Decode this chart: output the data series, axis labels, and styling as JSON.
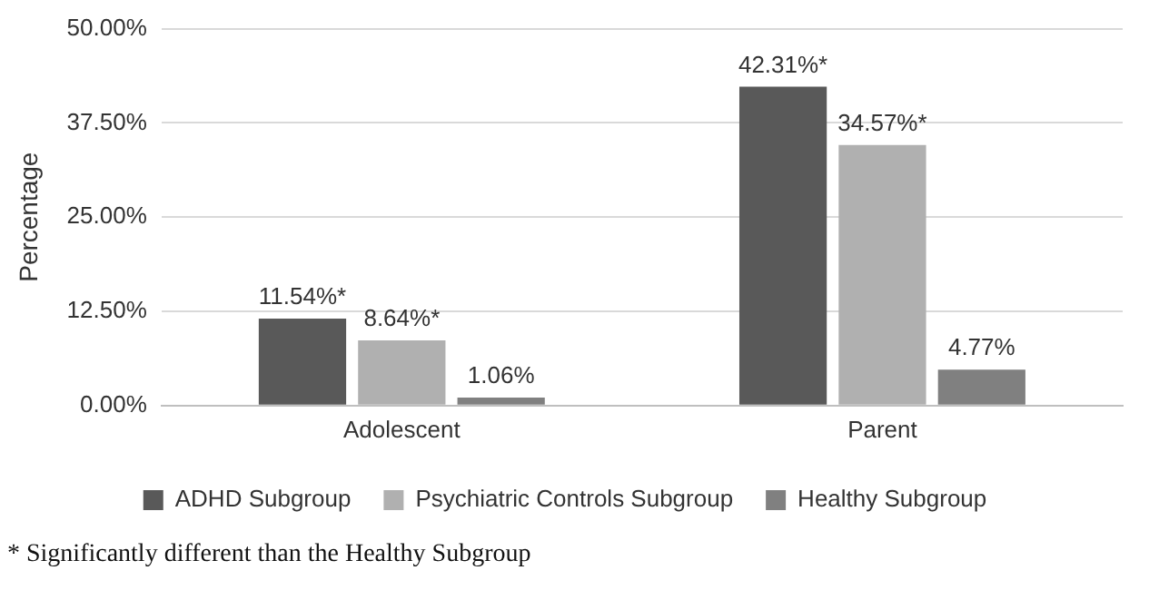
{
  "chart_data": {
    "type": "bar",
    "ylabel": "Percentage",
    "categories": [
      "Adolescent",
      "Parent"
    ],
    "series": [
      {
        "name": "ADHD Subgroup",
        "color": "#595959",
        "values": [
          11.54,
          42.31
        ],
        "value_labels": [
          "11.54%*",
          "42.31%*"
        ]
      },
      {
        "name": "Psychiatric Controls Subgroup",
        "color": "#b0b0b0",
        "values": [
          8.64,
          34.57
        ],
        "value_labels": [
          "8.64%*",
          "34.57%*"
        ]
      },
      {
        "name": "Healthy Subgroup",
        "color": "#808080",
        "values": [
          1.06,
          4.77
        ],
        "value_labels": [
          "1.06%",
          "4.77%"
        ]
      }
    ],
    "ylim": [
      0,
      50
    ],
    "yticks": [
      {
        "value": 0,
        "label": "0.00%"
      },
      {
        "value": 12.5,
        "label": "12.50%"
      },
      {
        "value": 25,
        "label": "25.00%"
      },
      {
        "value": 37.5,
        "label": "37.50%"
      },
      {
        "value": 50,
        "label": "50.00%"
      }
    ],
    "grid": "y",
    "legend": "bottom",
    "annotations": [
      "* Significantly different than the Healthy Subgroup"
    ]
  }
}
